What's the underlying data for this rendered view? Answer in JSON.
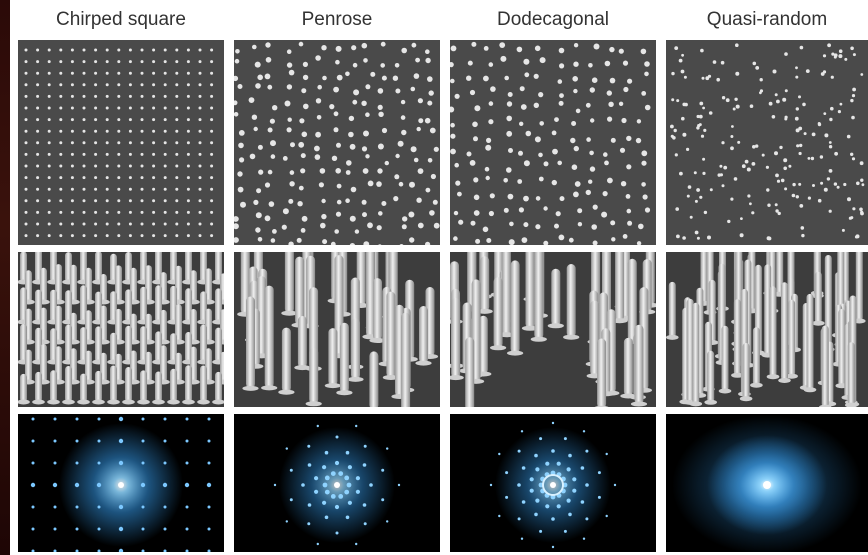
{
  "figure": {
    "columns": [
      {
        "title": "Chirped square",
        "pattern": "chirped-square"
      },
      {
        "title": "Penrose",
        "pattern": "penrose"
      },
      {
        "title": "Dodecagonal",
        "pattern": "dodecagonal"
      },
      {
        "title": "Quasi-random",
        "pattern": "quasi-random"
      }
    ],
    "rows": [
      "sem-top-view",
      "sem-tilted-view",
      "diffraction-pattern"
    ],
    "colors": {
      "sem_background": "#4a4a4a",
      "sem_dots": "#e6e6e6",
      "diffraction_background": "#000000",
      "diffraction_glow": "#3aa8ff"
    }
  }
}
